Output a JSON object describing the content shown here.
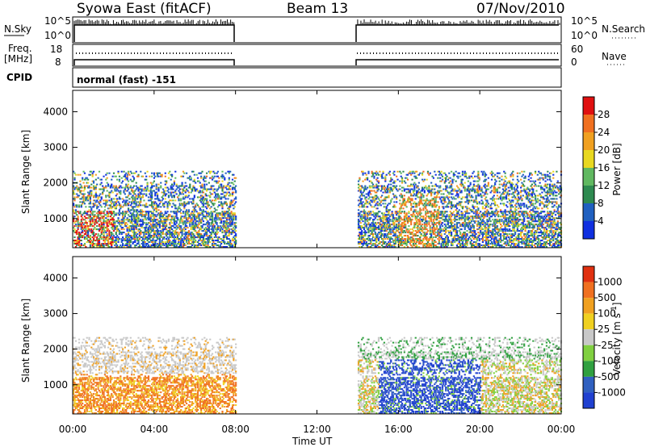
{
  "header": {
    "station": "Syowa East (fitACF)",
    "beam": "Beam 13",
    "date": "07/Nov/2010"
  },
  "strip_panels": {
    "nsky_label": "N.Sky",
    "nsearch_label": "N.Search",
    "nsky_ticks": [
      "10^5",
      "10^0"
    ],
    "nsearch_ticks": [
      "10^5",
      "10^0"
    ],
    "freq_label": "Freq.",
    "freq_unit": "[MHz]",
    "freq_ticks": [
      "18",
      "8"
    ],
    "nave_label": "Nave",
    "nave_ticks": [
      "60",
      "0"
    ],
    "cpid_label": "CPID",
    "cpid_value": "normal (fast) -151"
  },
  "colors": {
    "power_scale": [
      "#1030e0",
      "#2060c0",
      "#2e8a50",
      "#60b860",
      "#e8d820",
      "#f0a020",
      "#f07020",
      "#e01010"
    ],
    "velocity_scale": [
      "#2040d0",
      "#3060c0",
      "#30a040",
      "#80d040",
      "#c8c8c8",
      "#f0d020",
      "#f0a020",
      "#f07020",
      "#e03010"
    ]
  },
  "chart_data": [
    {
      "type": "heatmap",
      "name": "power",
      "ylabel": "Slant Range [km]",
      "colorbar_label": "Power [dB]",
      "colorbar_ticks": [
        "28",
        "24",
        "20",
        "16",
        "12",
        "8",
        "4"
      ],
      "y_ticks": [
        "4000",
        "3000",
        "2000",
        "1000"
      ],
      "ylim": [
        180,
        4600
      ],
      "xlim_hours": [
        0,
        24
      ],
      "data_windows_hours": [
        [
          0,
          8
        ],
        [
          14,
          24
        ]
      ]
    },
    {
      "type": "heatmap",
      "name": "velocity",
      "ylabel": "Slant Range [km]",
      "colorbar_label": "Velocity [m s^-1]",
      "colorbar_ticks": [
        "1000",
        "500",
        "100",
        "25",
        "-25",
        "-100",
        "-500",
        "-1000"
      ],
      "y_ticks": [
        "4000",
        "3000",
        "2000",
        "1000"
      ],
      "ylim": [
        180,
        4600
      ],
      "xlim_hours": [
        0,
        24
      ],
      "data_windows_hours": [
        [
          0,
          8
        ],
        [
          14,
          24
        ]
      ]
    }
  ],
  "x_axis": {
    "tick_labels": [
      "00:00",
      "04:00",
      "08:00",
      "12:00",
      "16:00",
      "20:00",
      "00:00"
    ],
    "xlabel": "Time UT"
  }
}
